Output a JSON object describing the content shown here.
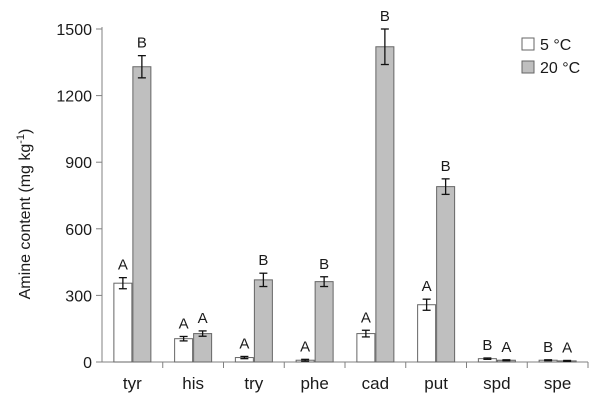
{
  "chart_data": {
    "type": "bar",
    "categories": [
      "tyr",
      "his",
      "try",
      "phe",
      "cad",
      "put",
      "spd",
      "spe"
    ],
    "series": [
      {
        "name": "5 °C",
        "color": "#ffffff",
        "values": [
          355,
          105,
          20,
          8,
          128,
          258,
          15,
          8
        ],
        "errors": [
          25,
          10,
          5,
          4,
          15,
          25,
          3,
          2
        ],
        "labels": [
          "A",
          "A",
          "A",
          "A",
          "A",
          "A",
          "B",
          "B"
        ]
      },
      {
        "name": "20 °C",
        "color": "#bfbfbf",
        "values": [
          1330,
          128,
          370,
          362,
          1420,
          790,
          8,
          5
        ],
        "errors": [
          50,
          12,
          30,
          22,
          80,
          35,
          2,
          2
        ],
        "labels": [
          "B",
          "A",
          "B",
          "B",
          "B",
          "B",
          "A",
          "A"
        ]
      }
    ],
    "ylabel_main": "Amine content (mg kg",
    "ylabel_sup": "-1",
    "ylabel_end": ")",
    "ylim": [
      0,
      1500
    ],
    "yticks": [
      "0",
      "300",
      "600",
      "900",
      "1200",
      "1500"
    ],
    "ytick_values": [
      0,
      300,
      600,
      900,
      1200,
      1500
    ],
    "grid": false,
    "legend_position": "top-right"
  }
}
